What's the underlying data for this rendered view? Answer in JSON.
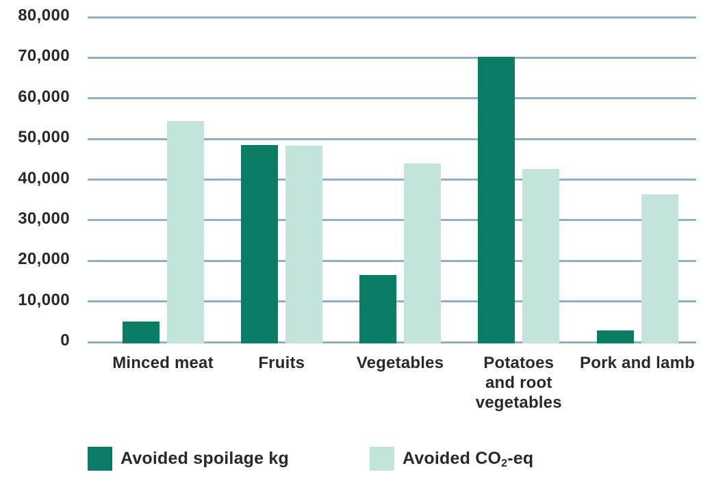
{
  "background": "#ffffff",
  "text_color": "#2b2826",
  "grid_color": "#8fb2c3",
  "chart_data": {
    "type": "bar",
    "title": "",
    "xlabel": "",
    "ylabel": "",
    "categories": [
      "Minced meat",
      "Fruits",
      "Vegetables",
      "Potatoes and root vegetables",
      "Pork and lamb"
    ],
    "category_lines": [
      [
        "Minced meat"
      ],
      [
        "Fruits"
      ],
      [
        "Vegetables"
      ],
      [
        "Potatoes",
        "and root",
        "vegetables"
      ],
      [
        "Pork and lamb"
      ]
    ],
    "series": [
      {
        "name": "Avoided spoilage kg",
        "color": "#0a7c63",
        "values": [
          5000,
          48500,
          16500,
          70300,
          2900
        ]
      },
      {
        "name": "Avoided CO2-eq",
        "color": "#c2e4dc",
        "values": [
          54400,
          48300,
          44000,
          42600,
          36400
        ]
      }
    ],
    "ylim": [
      0,
      80000
    ],
    "ytick_interval": 10000,
    "ytick_labels": [
      "0",
      "10,000",
      "20,000",
      "30,000",
      "40,000",
      "50,000",
      "60,000",
      "70,000",
      "80,000"
    ],
    "grid": true,
    "legend_position": "bottom"
  },
  "legend": {
    "items": [
      {
        "label": "Avoided spoilage kg"
      },
      {
        "prefix": "Avoided CO",
        "sub": "2",
        "suffix": "-eq"
      }
    ]
  }
}
